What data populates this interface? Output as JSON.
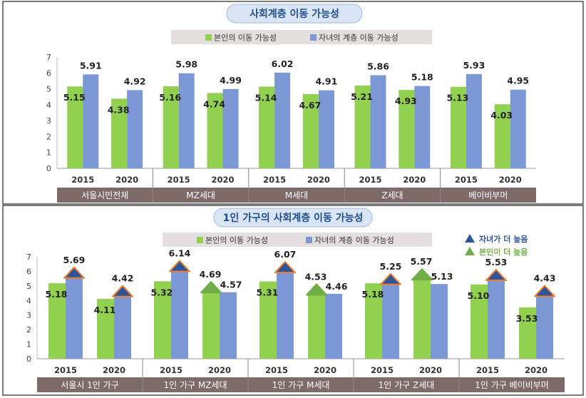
{
  "colors": {
    "self": "#92d050",
    "child": "#7b97d4",
    "group_band": "#7f6a6a",
    "legend_box": "#e4dede",
    "title_pill": "#d9e5f5",
    "title_text": "#1f4e8c",
    "tri_child": "#2f5597",
    "tri_self": "#70ad47",
    "tri_outline": "#ed7d31"
  },
  "chart_data": [
    {
      "type": "bar",
      "title": "사회계층 이동 가능성",
      "legend": [
        "본인의 이동 가능성",
        "자녀의 계층 이동 가능성"
      ],
      "ylim": [
        0,
        7
      ],
      "yticks": [
        "0",
        "1",
        "2",
        "3",
        "4",
        "5",
        "6",
        "7"
      ],
      "groups": [
        {
          "label": "서울시민전체",
          "years": [
            {
              "year": "2015",
              "self": 5.15,
              "child": 5.91,
              "self_label": "5.15",
              "child_label": "5.91"
            },
            {
              "year": "2020",
              "self": 4.38,
              "child": 4.92,
              "self_label": "4.38",
              "child_label": "4.92"
            }
          ]
        },
        {
          "label": "MZ세대",
          "years": [
            {
              "year": "2015",
              "self": 5.16,
              "child": 5.98,
              "self_label": "5.16",
              "child_label": "5.98"
            },
            {
              "year": "2020",
              "self": 4.74,
              "child": 4.99,
              "self_label": "4.74",
              "child_label": "4.99"
            }
          ]
        },
        {
          "label": "M세대",
          "years": [
            {
              "year": "2015",
              "self": 5.14,
              "child": 6.02,
              "self_label": "5.14",
              "child_label": "6.02"
            },
            {
              "year": "2020",
              "self": 4.67,
              "child": 4.91,
              "self_label": "4.67",
              "child_label": "4.91"
            }
          ]
        },
        {
          "label": "Z세대",
          "years": [
            {
              "year": "2015",
              "self": 5.21,
              "child": 5.86,
              "self_label": "5.21",
              "child_label": "5.86"
            },
            {
              "year": "2020",
              "self": 4.93,
              "child": 5.18,
              "self_label": "4.93",
              "child_label": "5.18"
            }
          ]
        },
        {
          "label": "베이비부머",
          "years": [
            {
              "year": "2015",
              "self": 5.13,
              "child": 5.93,
              "self_label": "5.13",
              "child_label": "5.93"
            },
            {
              "year": "2020",
              "self": 4.03,
              "child": 4.95,
              "self_label": "4.03",
              "child_label": "4.95"
            }
          ]
        }
      ]
    },
    {
      "type": "bar",
      "title": "1인 가구의 사회계층 이동 가능성",
      "legend": [
        "본인의 이동 가능성",
        "자녀의 계층 이동 가능성"
      ],
      "marker_legend": [
        "자녀가 더 높음",
        "본인이 더 높음"
      ],
      "ylim": [
        0,
        7
      ],
      "yticks": [
        "0",
        "1",
        "2",
        "3",
        "4",
        "5",
        "6",
        "7"
      ],
      "groups": [
        {
          "label": "서울시 1인 가구",
          "years": [
            {
              "year": "2015",
              "self": 5.18,
              "child": 5.69,
              "self_label": "5.18",
              "child_label": "5.69",
              "higher": "child"
            },
            {
              "year": "2020",
              "self": 4.11,
              "child": 4.42,
              "self_label": "4.11",
              "child_label": "4.42",
              "higher": "child"
            }
          ]
        },
        {
          "label": "1인 가구 MZ세대",
          "years": [
            {
              "year": "2015",
              "self": 5.32,
              "child": 6.14,
              "self_label": "5.32",
              "child_label": "6.14",
              "higher": "child"
            },
            {
              "year": "2020",
              "self": 4.69,
              "child": 4.57,
              "self_label": "4.69",
              "child_label": "4.57",
              "higher": "self"
            }
          ]
        },
        {
          "label": "1인 가구 M세대",
          "years": [
            {
              "year": "2015",
              "self": 5.31,
              "child": 6.07,
              "self_label": "5.31",
              "child_label": "6.07",
              "higher": "child"
            },
            {
              "year": "2020",
              "self": 4.53,
              "child": 4.46,
              "self_label": "4.53",
              "child_label": "4.46",
              "higher": "self"
            }
          ]
        },
        {
          "label": "1인 가구 Z세대",
          "years": [
            {
              "year": "2015",
              "self": 5.18,
              "child": 5.25,
              "self_label": "5.18",
              "child_label": "5.25",
              "higher": "child"
            },
            {
              "year": "2020",
              "self": 5.57,
              "child": 5.13,
              "self_label": "5.57",
              "child_label": "5.13",
              "higher": "self"
            }
          ]
        },
        {
          "label": "1인 가구 베이비부머",
          "years": [
            {
              "year": "2015",
              "self": 5.1,
              "child": 5.53,
              "self_label": "5.10",
              "child_label": "5.53",
              "higher": "child"
            },
            {
              "year": "2020",
              "self": 3.53,
              "child": 4.43,
              "self_label": "3.53",
              "child_label": "4.43",
              "higher": "child"
            }
          ]
        }
      ]
    }
  ]
}
